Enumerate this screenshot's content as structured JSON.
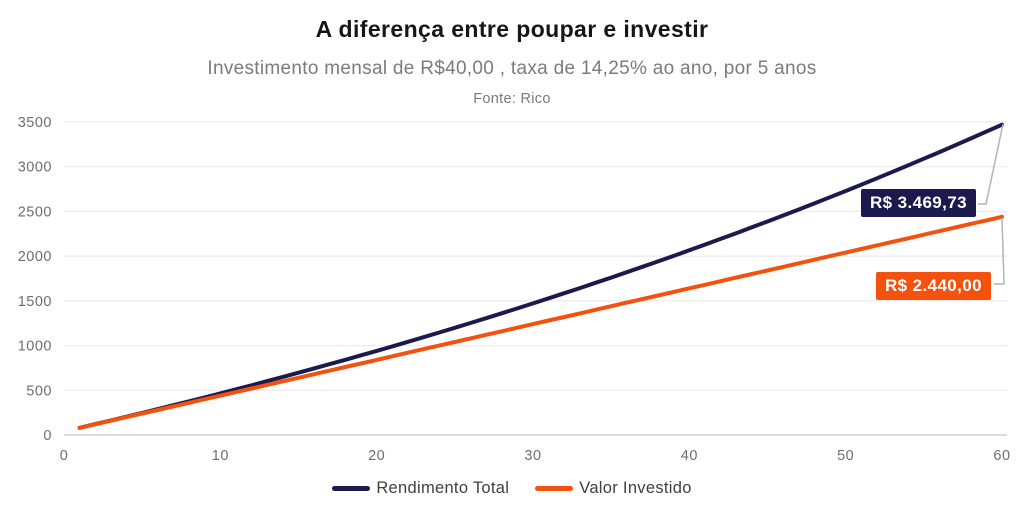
{
  "header": {
    "title": "A diferença entre poupar e investir",
    "subtitle": "Investimento mensal de R$40,00 , taxa de 14,25% ao ano, por 5 anos",
    "source": "Fonte: Rico"
  },
  "colors": {
    "rendimento_navy": "#1a1a4d",
    "investido_orange": "#f4510f",
    "grid_line": "#ebebeb",
    "axis_line": "#d9d9d9",
    "tick_text": "#6e6e6e",
    "callout_line": "#b3b3b8",
    "label_text": "#ffffff"
  },
  "chart_data": {
    "type": "line",
    "title": "A diferença entre poupar e investir",
    "subtitle": "Investimento mensal de R$40,00 , taxa de 14,25% ao ano, por 5 anos",
    "source": "Fonte: Rico",
    "xlabel": "",
    "ylabel": "",
    "xlim": [
      0,
      60
    ],
    "ylim": [
      0,
      3500
    ],
    "xticks": [
      0,
      10,
      20,
      30,
      40,
      50,
      60
    ],
    "yticks": [
      0,
      500,
      1000,
      1500,
      2000,
      2500,
      3000,
      3500
    ],
    "grid": "horizontal",
    "legend_position": "bottom",
    "x": [
      1,
      2,
      3,
      4,
      5,
      6,
      7,
      8,
      9,
      10,
      11,
      12,
      13,
      14,
      15,
      16,
      17,
      18,
      19,
      20,
      21,
      22,
      23,
      24,
      25,
      26,
      27,
      28,
      29,
      30,
      31,
      32,
      33,
      34,
      35,
      36,
      37,
      38,
      39,
      40,
      41,
      42,
      43,
      44,
      45,
      46,
      47,
      48,
      49,
      50,
      51,
      52,
      53,
      54,
      55,
      56,
      57,
      58,
      59,
      60
    ],
    "series": [
      {
        "name": "Rendimento Total",
        "color": "#1a1a4d",
        "end_label": "R$ 3.469,73",
        "end_value": 3469.73,
        "values": [
          80.44,
          121.33,
          162.69,
          204.5,
          246.79,
          289.54,
          332.77,
          376.48,
          420.68,
          465.38,
          510.57,
          556.27,
          602.48,
          649.21,
          696.46,
          744.24,
          792.55,
          841.4,
          890.79,
          940.74,
          991.24,
          1042.31,
          1093.95,
          1146.16,
          1198.96,
          1252.35,
          1306.33,
          1360.92,
          1416.11,
          1471.92,
          1528.35,
          1585.42,
          1643.12,
          1701.46,
          1760.46,
          1820.12,
          1880.44,
          1941.44,
          2003.12,
          2065.48,
          2128.55,
          2192.32,
          2256.8,
          2322.0,
          2387.93,
          2454.6,
          2522.01,
          2590.17,
          2659.1,
          2728.79,
          2799.26,
          2870.52,
          2942.58,
          3015.43,
          3089.11,
          3163.6,
          3238.93,
          3315.1,
          3392.12,
          3469.73
        ]
      },
      {
        "name": "Valor Investido",
        "color": "#f4510f",
        "end_label": "R$ 2.440,00",
        "end_value": 2440.0,
        "values": [
          80,
          120,
          160,
          200,
          240,
          280,
          320,
          360,
          400,
          440,
          480,
          520,
          560,
          600,
          640,
          680,
          720,
          760,
          800,
          840,
          880,
          920,
          960,
          1000,
          1040,
          1080,
          1120,
          1160,
          1200,
          1240,
          1280,
          1320,
          1360,
          1400,
          1440,
          1480,
          1520,
          1560,
          1600,
          1640,
          1680,
          1720,
          1760,
          1800,
          1840,
          1880,
          1920,
          1960,
          2000,
          2040,
          2080,
          2120,
          2160,
          2200,
          2240,
          2280,
          2320,
          2360,
          2400,
          2440
        ]
      }
    ]
  }
}
